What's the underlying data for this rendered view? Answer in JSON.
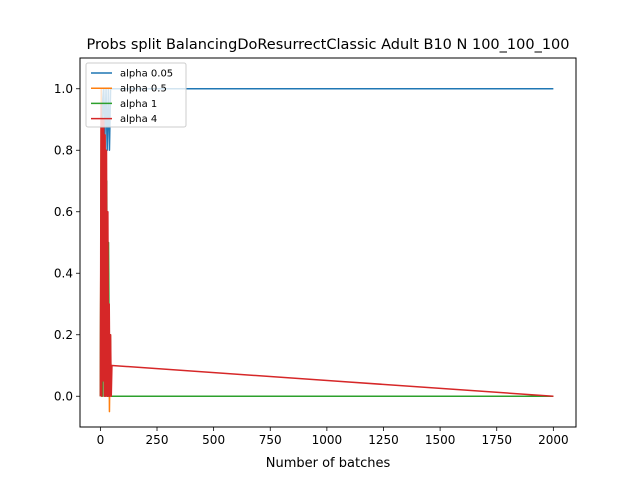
{
  "chart_data": {
    "type": "line",
    "title": "Probs split BalancingDoResurrectClassic Adult B10 N 100_100_100",
    "xlabel": "Number of batches",
    "ylabel": "",
    "xlim": [
      -90,
      2100
    ],
    "ylim": [
      -0.1,
      1.1
    ],
    "xticks": [
      0,
      250,
      500,
      750,
      1000,
      1250,
      1500,
      1750,
      2000
    ],
    "xtick_labels": [
      "0",
      "250",
      "500",
      "750",
      "1000",
      "1250",
      "1500",
      "1750",
      "2000"
    ],
    "yticks": [
      0.0,
      0.2,
      0.4,
      0.6,
      0.8,
      1.0
    ],
    "ytick_labels": [
      "0.0",
      "0.2",
      "0.4",
      "0.6",
      "0.8",
      "1.0"
    ],
    "grid": false,
    "legend_position": "top-left",
    "series": [
      {
        "name": "alpha 0.05",
        "color": "#1f77b4",
        "x": [
          0,
          5,
          10,
          15,
          20,
          25,
          30,
          35,
          40,
          45,
          50,
          2000
        ],
        "y": [
          0.0,
          1.0,
          0.9,
          1.0,
          0.85,
          1.0,
          0.8,
          1.0,
          0.8,
          1.0,
          1.0,
          1.0
        ]
      },
      {
        "name": "alpha 0.5",
        "color": "#ff7f0e",
        "x": [
          0,
          4,
          8,
          12,
          16,
          20,
          24,
          28,
          32,
          36,
          40,
          44,
          48,
          2000
        ],
        "y": [
          0.0,
          1.0,
          0.0,
          0.9,
          0.1,
          0.8,
          0.0,
          0.6,
          0.0,
          0.4,
          -0.05,
          0.2,
          0.0,
          0.0
        ]
      },
      {
        "name": "alpha 1",
        "color": "#2ca02c",
        "x": [
          0,
          4,
          8,
          12,
          16,
          20,
          24,
          28,
          32,
          36,
          40,
          44,
          48,
          2000
        ],
        "y": [
          0.0,
          0.95,
          0.0,
          0.9,
          0.0,
          0.85,
          0.0,
          0.7,
          0.0,
          0.5,
          0.0,
          0.2,
          0.0,
          0.0
        ]
      },
      {
        "name": "alpha 4",
        "color": "#d62728",
        "x": [
          0,
          3,
          6,
          9,
          12,
          15,
          18,
          21,
          24,
          27,
          30,
          33,
          36,
          39,
          42,
          45,
          48,
          51,
          2000
        ],
        "y": [
          0.0,
          0.95,
          0.0,
          0.9,
          0.05,
          0.9,
          0.0,
          0.85,
          0.0,
          0.8,
          0.0,
          0.6,
          0.0,
          0.3,
          0.0,
          0.2,
          0.0,
          0.1,
          0.0
        ]
      }
    ]
  }
}
